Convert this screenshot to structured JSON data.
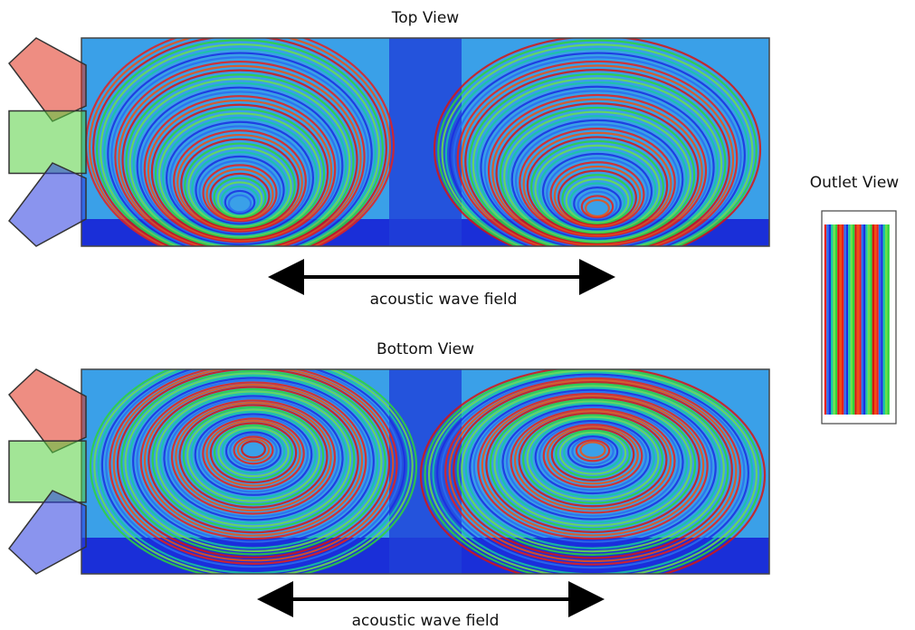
{
  "panels": [
    {
      "title": "Top View",
      "caption": "acoustic wave field"
    },
    {
      "title": "Bottom View",
      "caption": "acoustic wave field"
    }
  ],
  "outlet": {
    "title": "Outlet View"
  }
}
